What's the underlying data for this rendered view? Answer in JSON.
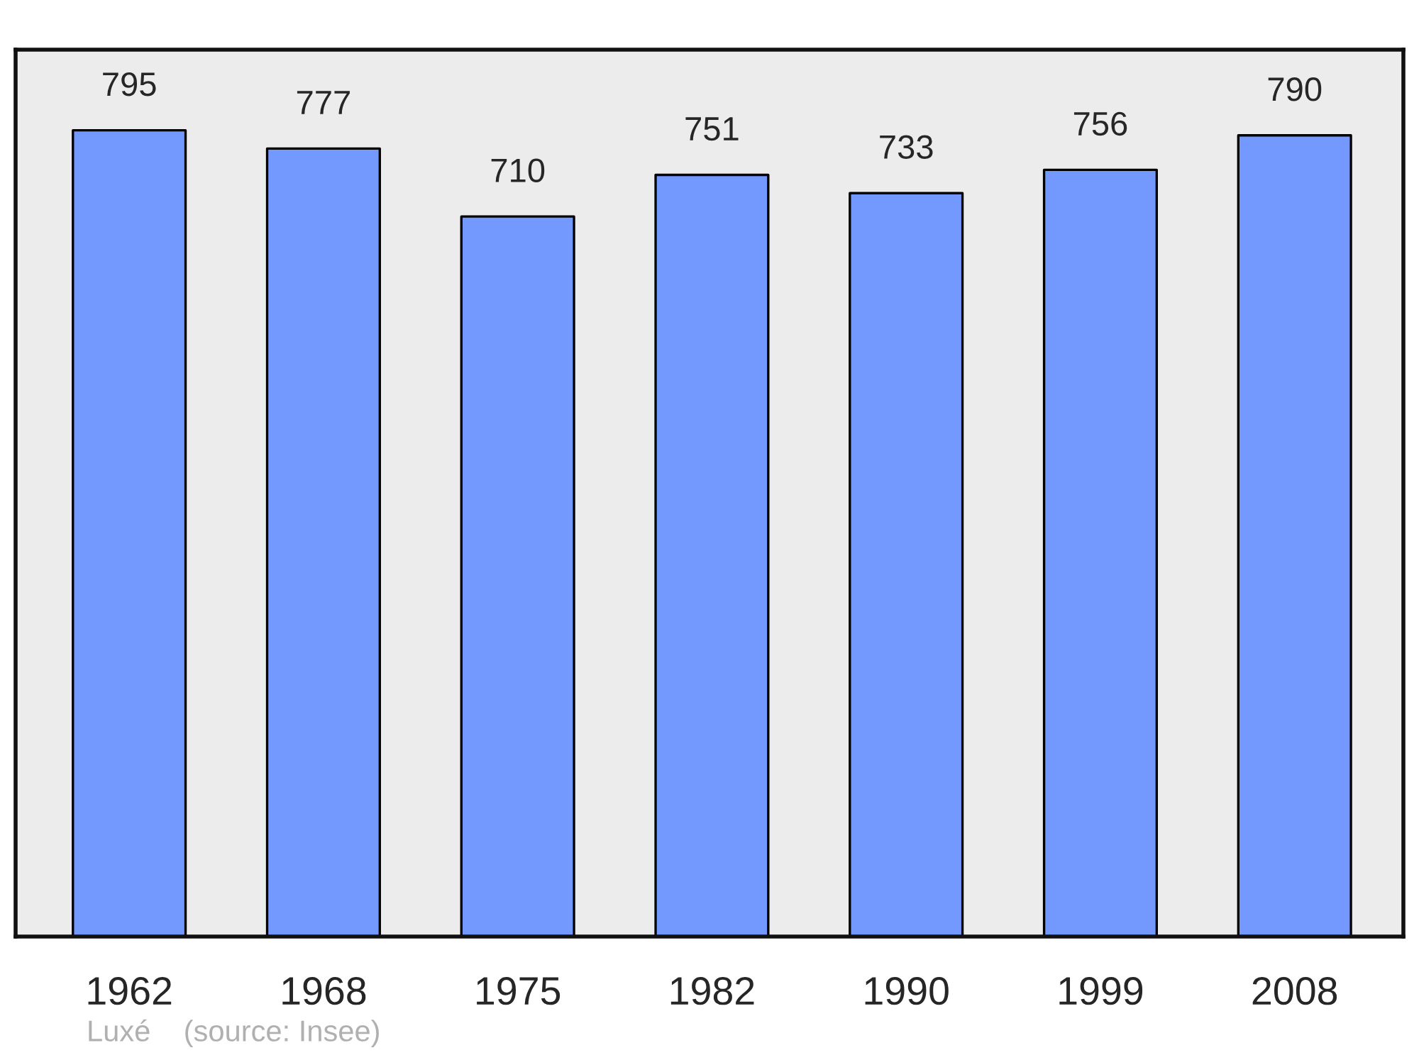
{
  "chart_data": {
    "type": "bar",
    "categories": [
      "1962",
      "1968",
      "1975",
      "1982",
      "1990",
      "1999",
      "2008"
    ],
    "values": [
      795,
      777,
      710,
      751,
      733,
      756,
      790
    ],
    "color": "#7399ff",
    "data_labels": true,
    "grid": false,
    "legend": false,
    "tick_labels": "x",
    "annotations": [
      "Luxé    (source: Insee)"
    ]
  }
}
